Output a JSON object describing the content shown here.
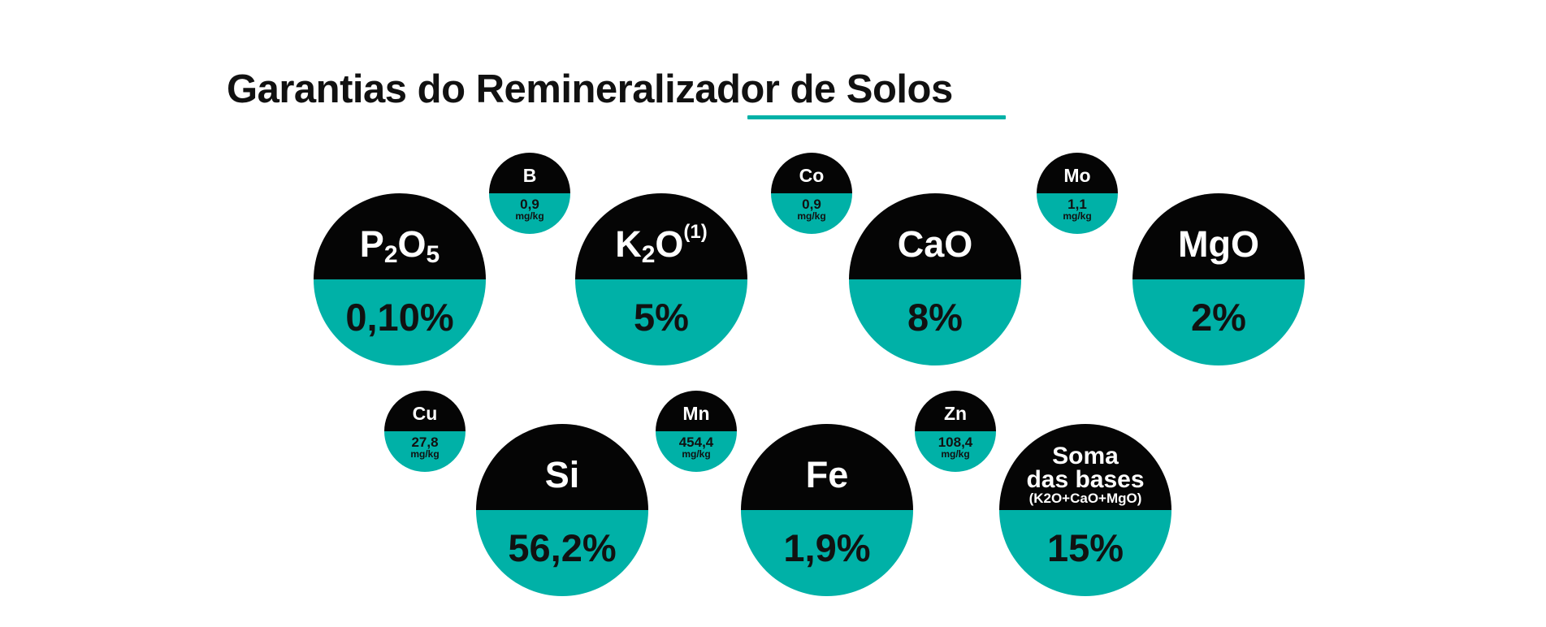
{
  "title": "Garantias do Remineralizador de Solos",
  "colors": {
    "accent": "#00b1a7",
    "dark": "#050505",
    "text": "#111111"
  },
  "big_circles": [
    {
      "id": "p2o5",
      "label_main": "P",
      "sub1": "2",
      "label_mid": "O",
      "sub2": "5",
      "value": "0,10%"
    },
    {
      "id": "k2o",
      "label_main": "K",
      "sub1": "2",
      "label_mid": "O",
      "sup": "(1)",
      "value": "5%"
    },
    {
      "id": "cao",
      "label": "CaO",
      "value": "8%"
    },
    {
      "id": "mgo",
      "label": "MgO",
      "value": "2%"
    },
    {
      "id": "si",
      "label": "Si",
      "value": "56,2%"
    },
    {
      "id": "fe",
      "label": "Fe",
      "value": "1,9%"
    },
    {
      "id": "soma",
      "line1": "Soma",
      "line2": "das bases",
      "line3": "(K2O+CaO+MgO)",
      "value": "15%"
    }
  ],
  "small_circles": [
    {
      "id": "b",
      "label": "B",
      "value": "0,9",
      "unit": "mg/kg"
    },
    {
      "id": "co",
      "label": "Co",
      "value": "0,9",
      "unit": "mg/kg"
    },
    {
      "id": "mo",
      "label": "Mo",
      "value": "1,1",
      "unit": "mg/kg"
    },
    {
      "id": "cu",
      "label": "Cu",
      "value": "27,8",
      "unit": "mg/kg"
    },
    {
      "id": "mn",
      "label": "Mn",
      "value": "454,4",
      "unit": "mg/kg"
    },
    {
      "id": "zn",
      "label": "Zn",
      "value": "108,4",
      "unit": "mg/kg"
    }
  ]
}
